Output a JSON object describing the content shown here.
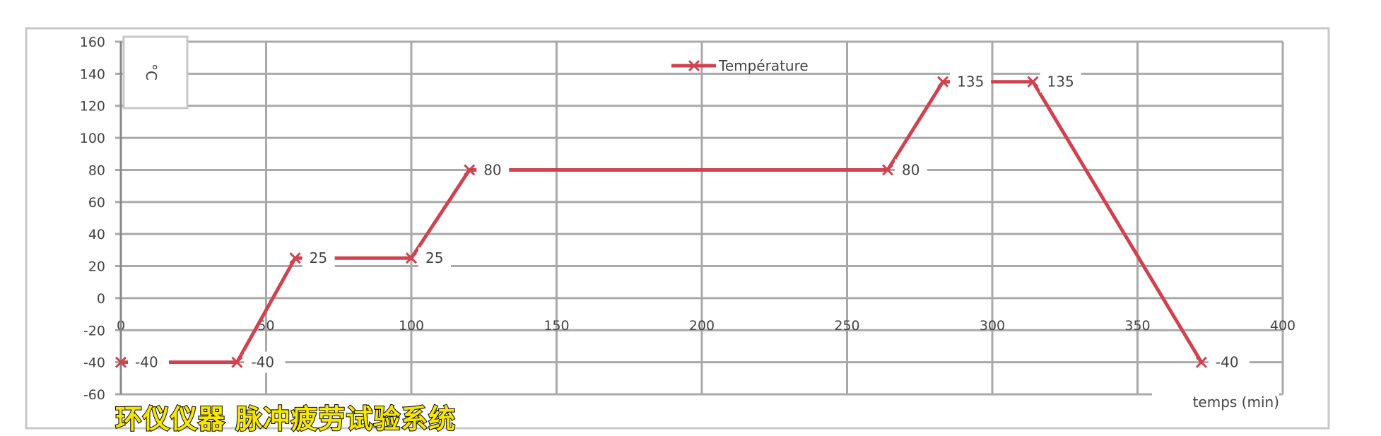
{
  "chart_data": {
    "type": "line",
    "title": "",
    "xlabel": "temps (min)",
    "ylabel": "°C",
    "xlim": [
      0,
      400
    ],
    "ylim": [
      -60,
      160
    ],
    "xticks": [
      0,
      50,
      100,
      150,
      200,
      250,
      300,
      350,
      400
    ],
    "yticks": [
      160,
      140,
      120,
      100,
      80,
      60,
      40,
      20,
      0,
      -20,
      -40,
      -60
    ],
    "grid": true,
    "legend": "top-center",
    "series": [
      {
        "name": "Température",
        "color": "#d0424f",
        "marker": "x",
        "x": [
          0,
          40,
          60,
          100,
          120,
          264,
          283,
          314,
          372
        ],
        "y": [
          -40,
          -40,
          25,
          25,
          80,
          80,
          135,
          135,
          -40
        ],
        "labels": [
          "-40",
          "-40",
          "25",
          "25",
          "80",
          "80",
          "135",
          "135",
          "-40"
        ]
      }
    ]
  },
  "watermark": "环仪仪器 脉冲疲劳试验系统"
}
